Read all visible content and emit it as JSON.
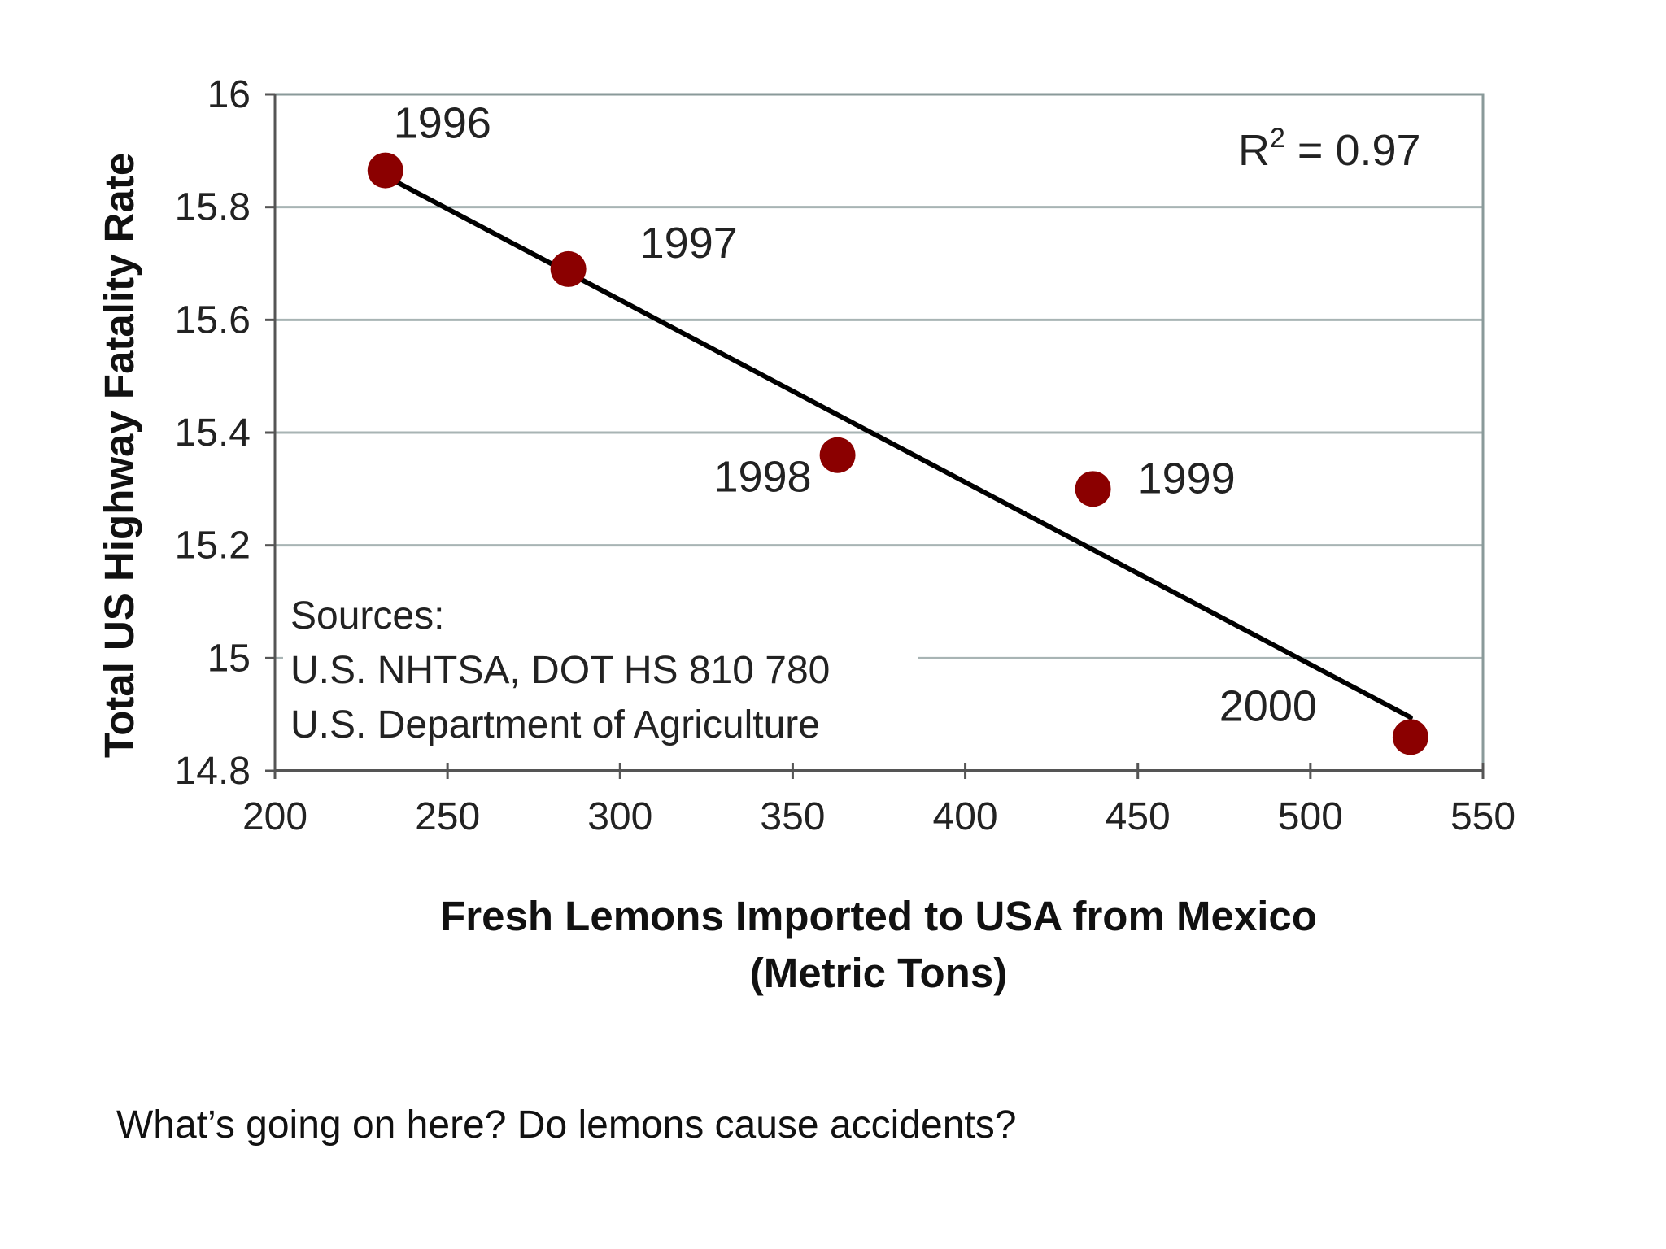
{
  "chart_data": {
    "type": "scatter",
    "title": "",
    "xlabel_line1": "Fresh Lemons Imported to USA from Mexico",
    "xlabel_line2": "(Metric Tons)",
    "ylabel": "Total US Highway Fatality Rate",
    "xlim": [
      200,
      550
    ],
    "ylim": [
      14.8,
      16
    ],
    "xticks": [
      200,
      250,
      300,
      350,
      400,
      450,
      500,
      550
    ],
    "yticks": [
      14.8,
      15,
      15.2,
      15.4,
      15.6,
      15.8,
      16
    ],
    "ytick_labels": [
      "14.8",
      "15",
      "15.2",
      "15.4",
      "15.6",
      "15.8",
      "16"
    ],
    "grid": true,
    "point_color": "#8b0000",
    "line_color": "#000000",
    "points": [
      {
        "label": "1996",
        "x": 232,
        "y": 15.865
      },
      {
        "label": "1997",
        "x": 285,
        "y": 15.69
      },
      {
        "label": "1998",
        "x": 363,
        "y": 15.36
      },
      {
        "label": "1999",
        "x": 437,
        "y": 15.3
      },
      {
        "label": "2000",
        "x": 529,
        "y": 14.86
      }
    ],
    "trendline": {
      "x": [
        232,
        529
      ],
      "y": [
        15.855,
        14.895
      ]
    },
    "r_squared": {
      "prefix": "R",
      "exponent": "2",
      "suffix": " = 0.97"
    },
    "annotations": {
      "sources_lines": [
        "Sources:",
        "U.S. NHTSA, DOT HS 810 780",
        "U.S. Department of Agriculture"
      ]
    }
  },
  "caption": "What’s going on here? Do lemons cause accidents?"
}
